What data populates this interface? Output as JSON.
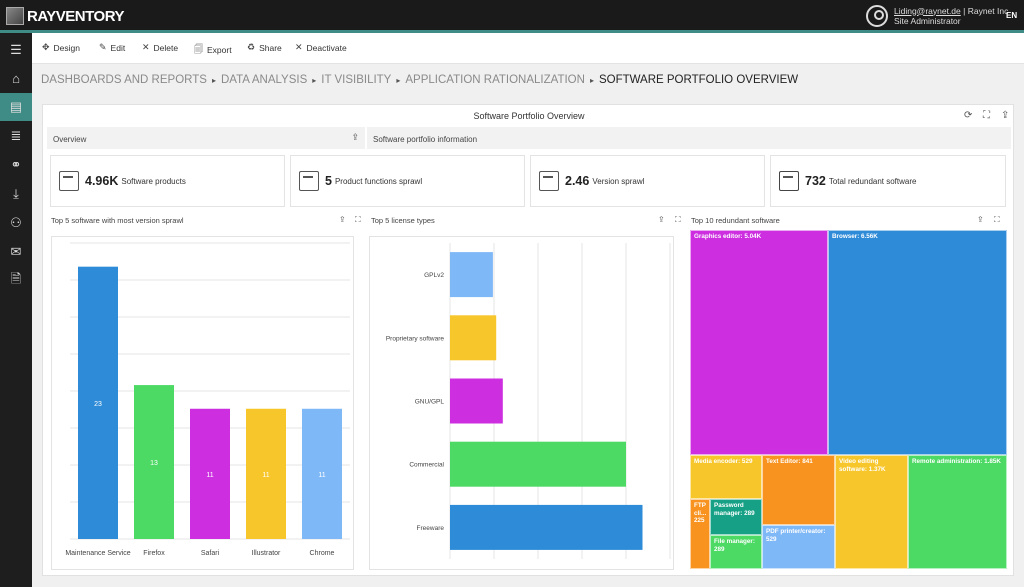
{
  "app": {
    "logo": "RAYVENTORY"
  },
  "user": {
    "email": "Liding@raynet.de",
    "org": "| Raynet Inc",
    "role": "Site Administrator",
    "lang": "EN"
  },
  "sidebar": {
    "items": [
      {
        "icon": "menu-icon",
        "glyph": "☰"
      },
      {
        "icon": "home-icon",
        "glyph": "⌂"
      },
      {
        "icon": "dashboard-icon",
        "glyph": "▤",
        "active": true
      },
      {
        "icon": "list-icon",
        "glyph": "≣"
      },
      {
        "icon": "link-icon",
        "glyph": "⚭"
      },
      {
        "icon": "download-icon",
        "glyph": "⤓"
      },
      {
        "icon": "user-settings-icon",
        "glyph": "⚇"
      },
      {
        "icon": "mail-icon",
        "glyph": "✉"
      },
      {
        "icon": "document-icon",
        "glyph": "🗎"
      }
    ]
  },
  "toolbar": {
    "design": {
      "icon": "design-icon",
      "glyph": "✥",
      "label": "Design"
    },
    "edit": {
      "icon": "edit-icon",
      "glyph": "✎",
      "label": "Edit"
    },
    "delete": {
      "icon": "delete-icon",
      "glyph": "✕",
      "label": "Delete"
    },
    "export": {
      "icon": "export-icon",
      "glyph": "🗐",
      "label": "Export"
    },
    "share": {
      "icon": "share-icon",
      "glyph": "♻",
      "label": "Share"
    },
    "deactivate": {
      "icon": "deactivate-icon",
      "glyph": "✕",
      "label": "Deactivate"
    }
  },
  "breadcrumb": {
    "items": [
      "DASHBOARDS AND REPORTS",
      "DATA ANALYSIS",
      "IT VISIBILITY",
      "APPLICATION RATIONALIZATION"
    ],
    "current": "SOFTWARE PORTFOLIO OVERVIEW",
    "separator": "▸"
  },
  "dashboard": {
    "title": "Software Portfolio Overview",
    "controls": {
      "refresh": "⟳",
      "fullscreen": "⛶",
      "export": "⇪"
    },
    "sections": {
      "overview": "Overview",
      "info": "Software portfolio information"
    },
    "kpis": [
      {
        "value": "4.96K",
        "label": "Software products",
        "icon": "package-icon"
      },
      {
        "value": "5",
        "label": "Product functions sprawl",
        "icon": "package-icon"
      },
      {
        "value": "2.46",
        "label": "Version sprawl",
        "icon": "package-icon"
      },
      {
        "value": "732",
        "label": "Total redundant software",
        "icon": "checklist-icon"
      }
    ],
    "panels": {
      "version_sprawl": "Top 5 software with most version sprawl",
      "license_types": "Top 5 license types",
      "redundant": "Top 10 redundant software"
    },
    "panel_icons": {
      "export": "⇪",
      "expand": "⛶"
    }
  },
  "chart_data": [
    {
      "type": "bar",
      "title": "Top 5 software with most version sprawl",
      "categories": [
        "Maintenance Service",
        "Firefox",
        "Safari",
        "Illustrator",
        "Chrome"
      ],
      "values": [
        23,
        13,
        11,
        11,
        11
      ],
      "value_labels": [
        "23",
        "13",
        "11",
        "11",
        "11"
      ],
      "colors": [
        "#2e8bd8",
        "#4cd964",
        "#cc2ee0",
        "#f7c62a",
        "#7fb8f7"
      ],
      "ylim": [
        0,
        25
      ],
      "grid": true
    },
    {
      "type": "bar",
      "orientation": "horizontal",
      "title": "Top 5 license types",
      "categories": [
        "GPLv2",
        "Proprietary software",
        "GNU/GPL",
        "Commercial",
        "Freeware"
      ],
      "values": [
        39,
        42,
        48,
        160,
        175
      ],
      "colors": [
        "#7fb8f7",
        "#f7c62a",
        "#cc2ee0",
        "#4cd964",
        "#2e8bd8"
      ],
      "xlim": [
        0,
        200
      ],
      "grid": true
    },
    {
      "type": "treemap",
      "title": "Top 10 redundant software",
      "items": [
        {
          "name": "Browser",
          "label": "Browser: 6.56K",
          "value": 6560,
          "color": "#2e8bd8"
        },
        {
          "name": "Graphics editor",
          "label": "Graphics editor: 5.04K",
          "value": 5040,
          "color": "#cc2ee0"
        },
        {
          "name": "Remote administration",
          "label": "Remote administration: 1.85K",
          "value": 1850,
          "color": "#4cd964"
        },
        {
          "name": "Video editing software",
          "label": "Video editing software: 1.37K",
          "value": 1370,
          "color": "#f7c62a"
        },
        {
          "name": "Text Editor",
          "label": "Text Editor: 841",
          "value": 841,
          "color": "#f7931e"
        },
        {
          "name": "Media encoder",
          "label": "Media encoder: 529",
          "value": 529,
          "color": "#f7c62a"
        },
        {
          "name": "PDF printer/creator",
          "label": "PDF printer/creator: 529",
          "value": 529,
          "color": "#7fb8f7"
        },
        {
          "name": "Password manager",
          "label": "Password manager: 289",
          "value": 289,
          "color": "#16a085"
        },
        {
          "name": "File manager",
          "label": "File manager: 289",
          "value": 289,
          "color": "#4cd964"
        },
        {
          "name": "FTP cli...",
          "label": "FTP cli... 225",
          "value": 225,
          "color": "#f7931e"
        }
      ]
    }
  ]
}
